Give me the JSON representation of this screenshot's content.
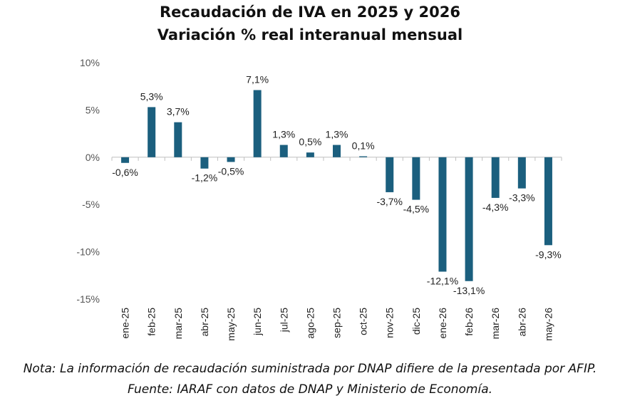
{
  "chart_data": {
    "type": "bar",
    "title": "Recaudación de IVA en 2025 y 2026",
    "subtitle": "Variación % real interanual mensual",
    "categories": [
      "ene-25",
      "feb-25",
      "mar-25",
      "abr-25",
      "may-25",
      "jun-25",
      "jul-25",
      "ago-25",
      "sep-25",
      "oct-25",
      "nov-25",
      "dic-25",
      "ene-26",
      "feb-26",
      "mar-26",
      "abr-26",
      "may-26"
    ],
    "values": [
      -0.6,
      5.3,
      3.7,
      -1.2,
      -0.5,
      7.1,
      1.3,
      0.5,
      1.3,
      0.1,
      -3.7,
      -4.5,
      -12.1,
      -13.1,
      -4.3,
      -3.3,
      -9.3
    ],
    "data_labels": [
      "-0,6%",
      "5,3%",
      "3,7%",
      "-1,2%",
      "-0,5%",
      "7,1%",
      "1,3%",
      "0,5%",
      "1,3%",
      "0,1%",
      "-3,7%",
      "-4,5%",
      "-12,1%",
      "-13,1%",
      "-4,3%",
      "-3,3%",
      "-9,3%"
    ],
    "y_ticks": [
      10,
      5,
      0,
      -5,
      -10,
      -15
    ],
    "y_tick_labels": [
      "10%",
      "5%",
      "0%",
      "-5%",
      "-10%",
      "-15%"
    ],
    "ylim": [
      -15,
      10
    ],
    "xlabel": "",
    "ylabel": "",
    "grid": false,
    "bar_color": "#1b5f7e"
  },
  "notes": {
    "line1": "Nota: La información de recaudación suministrada por DNAP difiere de la presentada por AFIP.",
    "line2": "Fuente: IARAF con datos de DNAP y Ministerio de Economía."
  }
}
